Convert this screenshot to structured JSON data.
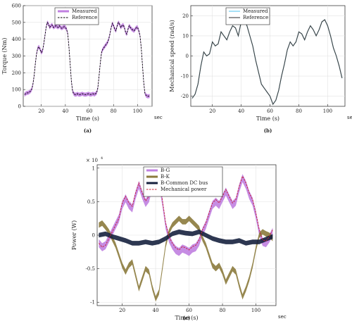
{
  "chart_data": [
    {
      "id": "a",
      "type": "line",
      "caption": "(a)",
      "xlabel": "Time (s)",
      "x_unit": "sec",
      "ylabel": "Torque (Nm)",
      "xlim": [
        5,
        112
      ],
      "ylim": [
        0,
        600
      ],
      "xticks": [
        20,
        40,
        60,
        80,
        100
      ],
      "yticks": [
        0,
        100,
        200,
        300,
        400,
        500,
        600
      ],
      "grid": true,
      "legend_position": "top-center",
      "series": [
        {
          "name": "Measured",
          "style": "band",
          "color": "#c080e0",
          "x": [
            6,
            7,
            8,
            9,
            10,
            11,
            12,
            13,
            14,
            15,
            16,
            17,
            18,
            19,
            20,
            21,
            22,
            23,
            24,
            25,
            26,
            27,
            28,
            29,
            30,
            31,
            32,
            33,
            34,
            35,
            36,
            37,
            38,
            39,
            40,
            41,
            42,
            43,
            44,
            45,
            46,
            47,
            48,
            49,
            50,
            51,
            52,
            53,
            54,
            55,
            56,
            57,
            58,
            59,
            60,
            61,
            62,
            63,
            64,
            65,
            66,
            67,
            68,
            69,
            70,
            71,
            72,
            73,
            74,
            75,
            76,
            77,
            78,
            79,
            80,
            81,
            82,
            83,
            84,
            85,
            86,
            87,
            88,
            89,
            90,
            91,
            92,
            93,
            94,
            95,
            96,
            97,
            98,
            99,
            100,
            101,
            102,
            103,
            104,
            105,
            106,
            107,
            108,
            109,
            110
          ],
          "y": [
            70,
            75,
            80,
            80,
            85,
            90,
            100,
            130,
            180,
            250,
            310,
            345,
            355,
            340,
            320,
            330,
            370,
            420,
            470,
            500,
            490,
            470,
            480,
            485,
            470,
            475,
            480,
            475,
            470,
            480,
            470,
            465,
            470,
            475,
            470,
            460,
            430,
            350,
            250,
            150,
            90,
            75,
            70,
            70,
            75,
            70,
            70,
            72,
            75,
            72,
            70,
            70,
            72,
            75,
            72,
            70,
            72,
            75,
            70,
            75,
            80,
            110,
            180,
            260,
            320,
            340,
            350,
            360,
            370,
            380,
            400,
            430,
            470,
            495,
            480,
            460,
            450,
            480,
            500,
            490,
            470,
            480,
            485,
            470,
            440,
            430,
            460,
            480,
            470,
            460,
            455,
            450,
            460,
            470,
            470,
            450,
            420,
            350,
            250,
            150,
            80,
            65,
            60,
            60,
            62
          ],
          "half_width": 12
        },
        {
          "name": "Reference",
          "style": "dashed",
          "color": "#000000",
          "x": [
            6,
            7,
            8,
            9,
            10,
            11,
            12,
            13,
            14,
            15,
            16,
            17,
            18,
            19,
            20,
            21,
            22,
            23,
            24,
            25,
            26,
            27,
            28,
            29,
            30,
            31,
            32,
            33,
            34,
            35,
            36,
            37,
            38,
            39,
            40,
            41,
            42,
            43,
            44,
            45,
            46,
            47,
            48,
            49,
            50,
            51,
            52,
            53,
            54,
            55,
            56,
            57,
            58,
            59,
            60,
            61,
            62,
            63,
            64,
            65,
            66,
            67,
            68,
            69,
            70,
            71,
            72,
            73,
            74,
            75,
            76,
            77,
            78,
            79,
            80,
            81,
            82,
            83,
            84,
            85,
            86,
            87,
            88,
            89,
            90,
            91,
            92,
            93,
            94,
            95,
            96,
            97,
            98,
            99,
            100,
            101,
            102,
            103,
            104,
            105,
            106,
            107,
            108,
            109,
            110
          ],
          "y": [
            70,
            75,
            80,
            80,
            85,
            90,
            100,
            130,
            180,
            250,
            310,
            345,
            355,
            340,
            320,
            330,
            370,
            420,
            470,
            500,
            490,
            470,
            480,
            485,
            470,
            475,
            480,
            475,
            470,
            480,
            470,
            465,
            470,
            475,
            470,
            460,
            430,
            350,
            250,
            150,
            90,
            75,
            70,
            70,
            75,
            70,
            70,
            72,
            75,
            72,
            70,
            70,
            72,
            75,
            72,
            70,
            72,
            75,
            70,
            75,
            80,
            110,
            180,
            260,
            320,
            340,
            350,
            360,
            370,
            380,
            400,
            430,
            470,
            495,
            480,
            460,
            450,
            480,
            500,
            490,
            470,
            480,
            485,
            470,
            440,
            430,
            460,
            480,
            470,
            460,
            455,
            450,
            460,
            470,
            470,
            450,
            420,
            350,
            250,
            150,
            80,
            65,
            60,
            60,
            62
          ]
        }
      ]
    },
    {
      "id": "b",
      "type": "line",
      "caption": "(b)",
      "xlabel": "Time (s)",
      "x_unit": "sec",
      "ylabel": "Mechanical speed (rad/s)",
      "xlim": [
        5,
        112
      ],
      "ylim": [
        -25,
        25
      ],
      "xticks": [
        20,
        40,
        60,
        80,
        100
      ],
      "yticks": [
        -20,
        -10,
        0,
        10,
        20
      ],
      "grid": true,
      "legend_position": "top-center",
      "series": [
        {
          "name": "Measured",
          "style": "solid",
          "color": "#5cc8f0",
          "x": [
            6,
            8,
            10,
            12,
            14,
            16,
            18,
            20,
            22,
            24,
            26,
            28,
            30,
            32,
            34,
            36,
            38,
            40,
            42,
            44,
            46,
            48,
            50,
            52,
            54,
            56,
            58,
            60,
            62,
            64,
            66,
            68,
            70,
            72,
            74,
            76,
            78,
            80,
            82,
            84,
            86,
            88,
            90,
            92,
            94,
            96,
            98,
            100,
            102,
            104,
            106,
            108,
            110
          ],
          "y": [
            -21,
            -19,
            -14,
            -5,
            2,
            0,
            1,
            7,
            5,
            6,
            12,
            10,
            8,
            12,
            15,
            14,
            10,
            17,
            18,
            15,
            10,
            5,
            -2,
            -8,
            -14,
            -16,
            -18,
            -20,
            -24,
            -22,
            -17,
            -10,
            -4,
            3,
            7,
            5,
            7,
            12,
            11,
            8,
            12,
            15,
            13,
            10,
            13,
            17,
            18,
            15,
            10,
            4,
            0,
            -5,
            -11
          ]
        },
        {
          "name": "Reference",
          "style": "solid",
          "color": "#404040",
          "x": [
            6,
            8,
            10,
            12,
            14,
            16,
            18,
            20,
            22,
            24,
            26,
            28,
            30,
            32,
            34,
            36,
            38,
            40,
            42,
            44,
            46,
            48,
            50,
            52,
            54,
            56,
            58,
            60,
            62,
            64,
            66,
            68,
            70,
            72,
            74,
            76,
            78,
            80,
            82,
            84,
            86,
            88,
            90,
            92,
            94,
            96,
            98,
            100,
            102,
            104,
            106,
            108,
            110
          ],
          "y": [
            -21,
            -19,
            -14,
            -5,
            2,
            0,
            1,
            7,
            5,
            6,
            12,
            10,
            8,
            12,
            15,
            14,
            10,
            17,
            18,
            15,
            10,
            5,
            -2,
            -8,
            -14,
            -16,
            -18,
            -20,
            -24,
            -22,
            -17,
            -10,
            -4,
            3,
            7,
            5,
            7,
            12,
            11,
            8,
            12,
            15,
            13,
            10,
            13,
            17,
            18,
            15,
            10,
            4,
            0,
            -5,
            -11
          ]
        }
      ]
    },
    {
      "id": "c",
      "type": "line",
      "caption": "(c)",
      "xlabel": "Time (s)",
      "x_unit": "sec",
      "ylabel": "Power (W)",
      "y_multiplier": "× 10",
      "y_multiplier_exp": "4",
      "xlim": [
        5,
        112
      ],
      "ylim": [
        -1.05,
        1.05
      ],
      "xticks": [
        20,
        40,
        60,
        80,
        100
      ],
      "yticks": [
        -1,
        -0.5,
        0,
        0.5,
        1
      ],
      "ytick_labels": [
        "-1",
        "-0.5",
        "0",
        "0.5",
        "1"
      ],
      "grid": true,
      "legend_position": "top-center",
      "series": [
        {
          "name": "B-G",
          "style": "band",
          "color": "#c080e0",
          "half_width": 0.06,
          "x": [
            6,
            8,
            10,
            12,
            14,
            16,
            18,
            20,
            22,
            24,
            26,
            28,
            30,
            32,
            34,
            36,
            38,
            40,
            42,
            44,
            46,
            48,
            50,
            52,
            54,
            56,
            58,
            60,
            62,
            64,
            66,
            68,
            70,
            72,
            74,
            76,
            78,
            80,
            82,
            84,
            86,
            88,
            90,
            92,
            94,
            96,
            98,
            100,
            102,
            104,
            106,
            108,
            110
          ],
          "y": [
            -0.12,
            -0.18,
            -0.15,
            -0.05,
            0.05,
            0.15,
            0.25,
            0.45,
            0.55,
            0.45,
            0.4,
            0.6,
            0.75,
            0.6,
            0.48,
            0.55,
            0.75,
            0.85,
            0.8,
            0.5,
            0.15,
            -0.05,
            -0.15,
            -0.22,
            -0.25,
            -0.2,
            -0.22,
            -0.25,
            -0.2,
            -0.18,
            -0.1,
            0.05,
            0.15,
            0.3,
            0.45,
            0.5,
            0.45,
            0.55,
            0.65,
            0.55,
            0.45,
            0.5,
            0.7,
            0.85,
            0.75,
            0.6,
            0.5,
            0.3,
            0.05,
            -0.1,
            -0.12,
            -0.05,
            0.05
          ]
        },
        {
          "name": "B-K",
          "style": "band",
          "color": "#8b7a3c",
          "half_width": 0.04,
          "x": [
            6,
            8,
            10,
            12,
            14,
            16,
            18,
            20,
            22,
            24,
            26,
            28,
            30,
            32,
            34,
            36,
            38,
            40,
            42,
            44,
            46,
            48,
            50,
            52,
            54,
            56,
            58,
            60,
            62,
            64,
            66,
            68,
            70,
            72,
            74,
            76,
            78,
            80,
            82,
            84,
            86,
            88,
            90,
            92,
            94,
            96,
            98,
            100,
            102,
            104,
            106,
            108,
            110
          ],
          "y": [
            0.15,
            0.18,
            0.12,
            0.05,
            -0.05,
            -0.15,
            -0.3,
            -0.45,
            -0.55,
            -0.45,
            -0.4,
            -0.6,
            -0.8,
            -0.65,
            -0.5,
            -0.55,
            -0.78,
            -0.95,
            -0.85,
            -0.5,
            -0.15,
            0.05,
            0.15,
            0.2,
            0.25,
            0.2,
            0.2,
            0.25,
            0.2,
            0.15,
            0.1,
            -0.05,
            -0.15,
            -0.3,
            -0.45,
            -0.5,
            -0.45,
            -0.55,
            -0.7,
            -0.6,
            -0.5,
            -0.55,
            -0.75,
            -0.92,
            -0.8,
            -0.65,
            -0.45,
            -0.2,
            0.0,
            0.05,
            0.02,
            0.0,
            -0.05
          ]
        },
        {
          "name": "B-Common DC bus",
          "style": "band",
          "color": "#16213e",
          "half_width": 0.035,
          "x": [
            6,
            10,
            14,
            18,
            22,
            26,
            30,
            34,
            38,
            42,
            46,
            50,
            54,
            58,
            62,
            66,
            70,
            74,
            78,
            82,
            86,
            90,
            94,
            98,
            102,
            106,
            110
          ],
          "y": [
            0.0,
            0.02,
            -0.02,
            -0.05,
            -0.08,
            -0.12,
            -0.12,
            -0.1,
            -0.12,
            -0.1,
            -0.05,
            0.02,
            0.05,
            0.03,
            0.02,
            0.05,
            0.0,
            -0.05,
            -0.08,
            -0.1,
            -0.1,
            -0.08,
            -0.12,
            -0.1,
            -0.1,
            -0.06,
            -0.02
          ]
        },
        {
          "name": "Mechanical power",
          "style": "dashed",
          "color": "#c81e32",
          "x": [
            6,
            8,
            10,
            12,
            14,
            16,
            18,
            20,
            22,
            24,
            26,
            28,
            30,
            32,
            34,
            36,
            38,
            40,
            42,
            44,
            46,
            48,
            50,
            52,
            54,
            56,
            58,
            60,
            62,
            64,
            66,
            68,
            70,
            72,
            74,
            76,
            78,
            80,
            82,
            84,
            86,
            88,
            90,
            92,
            94,
            96,
            98,
            100,
            102,
            104,
            106,
            108,
            110
          ],
          "y": [
            -0.12,
            -0.18,
            -0.15,
            -0.05,
            0.05,
            0.15,
            0.25,
            0.48,
            0.58,
            0.48,
            0.43,
            0.63,
            0.78,
            0.63,
            0.51,
            0.58,
            0.78,
            0.88,
            0.83,
            0.53,
            0.18,
            -0.02,
            -0.12,
            -0.19,
            -0.22,
            -0.17,
            -0.19,
            -0.22,
            -0.17,
            -0.15,
            -0.07,
            0.08,
            0.18,
            0.33,
            0.48,
            0.53,
            0.48,
            0.58,
            0.68,
            0.58,
            0.48,
            0.53,
            0.73,
            0.88,
            0.78,
            0.63,
            0.53,
            0.33,
            0.08,
            -0.07,
            -0.09,
            -0.02,
            0.08
          ]
        }
      ]
    }
  ]
}
